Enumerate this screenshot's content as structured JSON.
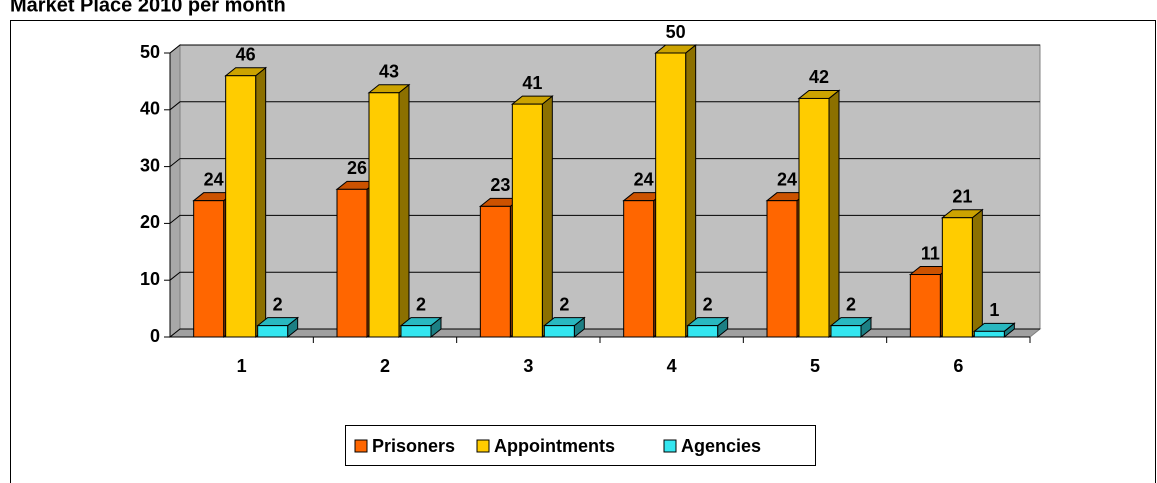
{
  "chart_data": {
    "type": "bar3d",
    "title": "Market Place 2010 per month",
    "categories": [
      "1",
      "2",
      "3",
      "4",
      "5",
      "6"
    ],
    "series": [
      {
        "name": "Prisoners",
        "color": "#ff6600",
        "values": [
          24,
          26,
          23,
          24,
          24,
          11
        ]
      },
      {
        "name": "Appointments",
        "color": "#ffcc00",
        "values": [
          46,
          43,
          41,
          50,
          42,
          21
        ]
      },
      {
        "name": "Agencies",
        "color": "#33e6f0",
        "values": [
          2,
          2,
          2,
          2,
          2,
          1
        ]
      }
    ],
    "ylim": [
      0,
      50
    ],
    "yticks": [
      0,
      10,
      20,
      30,
      40,
      50
    ],
    "grid": true,
    "legend": "bottom"
  }
}
